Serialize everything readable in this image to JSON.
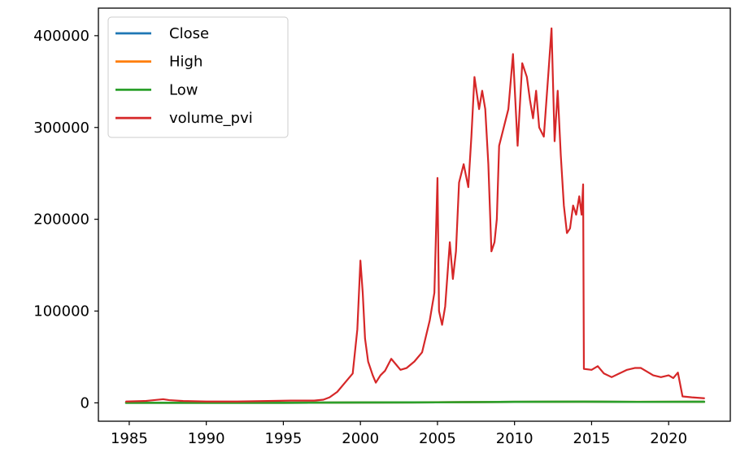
{
  "chart_data": {
    "type": "line",
    "title": "",
    "xlabel": "",
    "ylabel": "",
    "xlim": [
      1983.0,
      2024.0
    ],
    "ylim": [
      -20000,
      430000
    ],
    "xticks": [
      1985,
      1990,
      1995,
      2000,
      2005,
      2010,
      2015,
      2020
    ],
    "xtick_labels": [
      "1985",
      "1990",
      "1995",
      "2000",
      "2005",
      "2010",
      "2015",
      "2020"
    ],
    "yticks": [
      0,
      100000,
      200000,
      300000,
      400000
    ],
    "ytick_labels": [
      "0",
      "100000",
      "200000",
      "300000",
      "400000"
    ],
    "grid": false,
    "legend": {
      "position": "top-left"
    },
    "series": [
      {
        "name": "Close",
        "color": "#1f77b4",
        "x": [
          1984.8,
          1990.0,
          1995.0,
          2000.0,
          2005.0,
          2010.0,
          2014.5,
          2018.0,
          2022.3
        ],
        "y": [
          60,
          80,
          120,
          450,
          600,
          1100,
          1300,
          1050,
          1200
        ]
      },
      {
        "name": "High",
        "color": "#ff7f0e",
        "x": [
          1984.8,
          1990.0,
          1995.0,
          2000.0,
          2005.0,
          2010.0,
          2014.5,
          2018.0,
          2022.3
        ],
        "y": [
          62,
          82,
          125,
          460,
          610,
          1120,
          1320,
          1060,
          1220
        ]
      },
      {
        "name": "Low",
        "color": "#2ca02c",
        "x": [
          1984.8,
          1990.0,
          1995.0,
          2000.0,
          2005.0,
          2010.0,
          2014.5,
          2018.0,
          2022.3
        ],
        "y": [
          58,
          78,
          118,
          440,
          590,
          1080,
          1280,
          1040,
          1180
        ]
      },
      {
        "name": "volume_pvi",
        "color": "#d62728",
        "x": [
          1984.8,
          1986.0,
          1987.2,
          1987.6,
          1988.5,
          1990.0,
          1992.0,
          1994.0,
          1995.5,
          1997.0,
          1997.6,
          1998.0,
          1998.5,
          1999.0,
          1999.5,
          1999.8,
          2000.0,
          2000.15,
          2000.3,
          2000.5,
          2000.8,
          2001.0,
          2001.3,
          2001.6,
          2002.0,
          2002.3,
          2002.6,
          2003.0,
          2003.5,
          2004.0,
          2004.5,
          2004.8,
          2005.0,
          2005.1,
          2005.3,
          2005.5,
          2005.8,
          2006.0,
          2006.2,
          2006.4,
          2006.7,
          2007.0,
          2007.2,
          2007.4,
          2007.7,
          2007.9,
          2008.1,
          2008.3,
          2008.5,
          2008.7,
          2008.85,
          2009.0,
          2009.3,
          2009.6,
          2009.9,
          2010.2,
          2010.5,
          2010.8,
          2011.0,
          2011.2,
          2011.4,
          2011.6,
          2011.9,
          2012.2,
          2012.4,
          2012.6,
          2012.8,
          2013.0,
          2013.2,
          2013.4,
          2013.6,
          2013.8,
          2014.0,
          2014.2,
          2014.35,
          2014.45,
          2014.5,
          2015.0,
          2015.4,
          2015.8,
          2016.3,
          2016.8,
          2017.3,
          2017.8,
          2018.2,
          2018.6,
          2019.0,
          2019.5,
          2020.0,
          2020.3,
          2020.6,
          2020.9,
          2021.5,
          2022.3
        ],
        "y": [
          1500,
          2000,
          4000,
          3000,
          2000,
          1500,
          1500,
          2000,
          2500,
          2500,
          3500,
          6000,
          12000,
          22000,
          32000,
          80000,
          155000,
          120000,
          70000,
          45000,
          30000,
          22000,
          30000,
          35000,
          48000,
          42000,
          36000,
          38000,
          45000,
          55000,
          90000,
          120000,
          245000,
          100000,
          85000,
          105000,
          175000,
          135000,
          165000,
          240000,
          260000,
          235000,
          290000,
          355000,
          320000,
          340000,
          320000,
          260000,
          165000,
          175000,
          200000,
          280000,
          300000,
          320000,
          380000,
          280000,
          370000,
          355000,
          330000,
          310000,
          340000,
          300000,
          290000,
          360000,
          408000,
          285000,
          340000,
          270000,
          215000,
          185000,
          190000,
          215000,
          205000,
          225000,
          205000,
          238000,
          37000,
          36000,
          40000,
          32000,
          28000,
          32000,
          36000,
          38000,
          38000,
          34000,
          30000,
          28000,
          30000,
          27000,
          33000,
          7000,
          6000,
          5000
        ]
      }
    ]
  }
}
